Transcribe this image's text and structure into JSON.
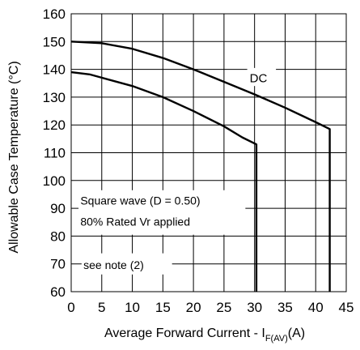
{
  "chart_data": {
    "type": "line",
    "title": "",
    "xlabel": "Average Forward Current - I",
    "xlabel_subscript": "F(AV)",
    "xlabel_unit": "(A)",
    "ylabel": "Allowable Case Temperature (°C)",
    "xlim": [
      0,
      45
    ],
    "ylim": [
      60,
      160
    ],
    "x_ticks": [
      0,
      5,
      10,
      15,
      20,
      25,
      30,
      35,
      40,
      45
    ],
    "y_ticks": [
      60,
      70,
      80,
      90,
      100,
      110,
      120,
      130,
      140,
      150,
      160
    ],
    "grid": true,
    "legend": "none",
    "series": [
      {
        "name": "DC",
        "points": [
          [
            0,
            150
          ],
          [
            5,
            149.4
          ],
          [
            10,
            147.4
          ],
          [
            15,
            144.1
          ],
          [
            20,
            140
          ],
          [
            25,
            135.5
          ],
          [
            30,
            131
          ],
          [
            35,
            126.2
          ],
          [
            40,
            121
          ],
          [
            42.3,
            118.5
          ],
          [
            42.3,
            60
          ]
        ]
      },
      {
        "name": "",
        "points": [
          [
            0,
            139
          ],
          [
            3,
            138.2
          ],
          [
            5,
            137
          ],
          [
            10,
            134
          ],
          [
            15,
            130
          ],
          [
            20,
            125
          ],
          [
            25,
            119.5
          ],
          [
            28,
            115.5
          ],
          [
            30.3,
            113
          ],
          [
            30.3,
            60
          ]
        ]
      }
    ],
    "annotations": [
      {
        "text": "Square wave (D = 0.50)"
      },
      {
        "text": "80% Rated Vr  applied"
      },
      {
        "text": "see note (2)"
      }
    ]
  },
  "colors": {
    "line": "#000000",
    "grid": "#000000",
    "background": "#ffffff"
  }
}
